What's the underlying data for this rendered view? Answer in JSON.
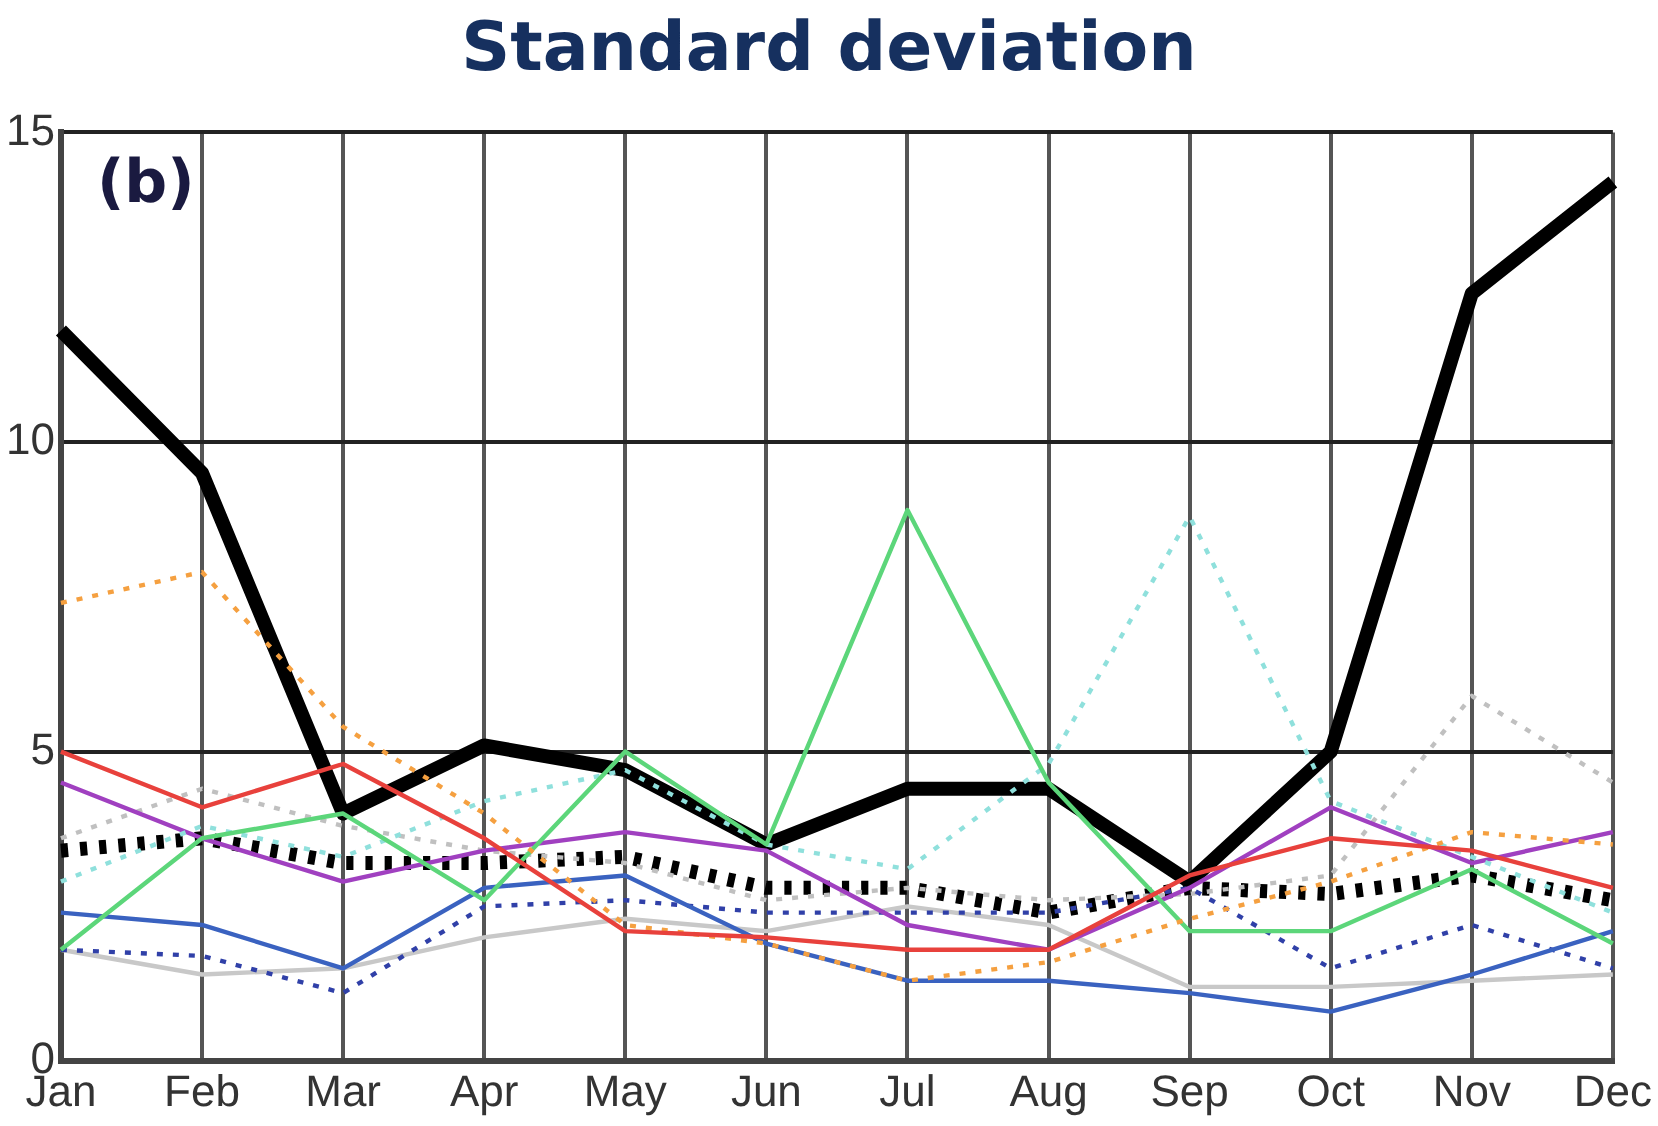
{
  "chart_data": {
    "type": "line",
    "title": "Standard deviation",
    "annotations": [
      "(b)"
    ],
    "categories": [
      "Jan",
      "Feb",
      "Mar",
      "Apr",
      "May",
      "Jun",
      "Jul",
      "Aug",
      "Sep",
      "Oct",
      "Nov",
      "Dec"
    ],
    "ylim": [
      0,
      15
    ],
    "yticks": [
      0,
      5,
      10,
      15
    ],
    "grid": true,
    "legend": false,
    "marker": "none",
    "series": [
      {
        "color": "#000000",
        "line_style": "solid",
        "values": [
          11.8,
          9.5,
          4.0,
          5.1,
          4.7,
          3.5,
          4.4,
          4.4,
          2.9,
          5.0,
          12.4,
          14.2
        ]
      },
      {
        "color": "#000000",
        "line_style": "dotted",
        "values": [
          3.4,
          3.6,
          3.2,
          3.2,
          3.3,
          2.8,
          2.8,
          2.4,
          2.8,
          2.7,
          3.0,
          2.6
        ]
      },
      {
        "color": "#e8413c",
        "line_style": "solid",
        "values": [
          5.0,
          4.1,
          4.8,
          3.6,
          2.1,
          2.0,
          1.8,
          1.8,
          3.0,
          3.6,
          3.4,
          2.8
        ]
      },
      {
        "color": "#f5a040",
        "line_style": "dotted",
        "values": [
          7.4,
          7.9,
          5.4,
          4.0,
          2.2,
          1.9,
          1.3,
          1.6,
          2.3,
          2.9,
          3.7,
          3.5
        ]
      },
      {
        "color": "#5cd67a",
        "line_style": "solid",
        "values": [
          1.8,
          3.6,
          4.0,
          2.6,
          5.0,
          3.5,
          8.9,
          4.5,
          2.1,
          2.1,
          3.1,
          1.9
        ]
      },
      {
        "color": "#8fe0dc",
        "line_style": "dotted",
        "values": [
          2.9,
          3.8,
          3.3,
          4.2,
          4.7,
          3.5,
          3.1,
          4.8,
          8.8,
          4.2,
          3.3,
          2.4
        ]
      },
      {
        "color": "#a040c0",
        "line_style": "solid",
        "values": [
          4.5,
          3.6,
          2.9,
          3.4,
          3.7,
          3.4,
          2.2,
          1.8,
          2.8,
          4.1,
          3.2,
          3.7
        ]
      },
      {
        "color": "#3a62c0",
        "line_style": "solid",
        "values": [
          2.4,
          2.2,
          1.5,
          2.8,
          3.0,
          1.9,
          1.3,
          1.3,
          1.1,
          0.8,
          1.4,
          2.1
        ]
      },
      {
        "color": "#3040a8",
        "line_style": "dotted",
        "values": [
          1.8,
          1.7,
          1.1,
          2.5,
          2.6,
          2.4,
          2.4,
          2.4,
          2.8,
          1.5,
          2.2,
          1.5
        ]
      },
      {
        "color": "#c8c8c8",
        "line_style": "solid",
        "values": [
          1.8,
          1.4,
          1.5,
          2.0,
          2.3,
          2.1,
          2.5,
          2.2,
          1.2,
          1.2,
          1.3,
          1.4
        ]
      },
      {
        "color": "#c0c0c0",
        "line_style": "dotted",
        "values": [
          3.6,
          4.4,
          3.8,
          3.4,
          3.2,
          2.6,
          2.8,
          2.6,
          2.7,
          3.0,
          5.9,
          4.5
        ]
      }
    ]
  }
}
